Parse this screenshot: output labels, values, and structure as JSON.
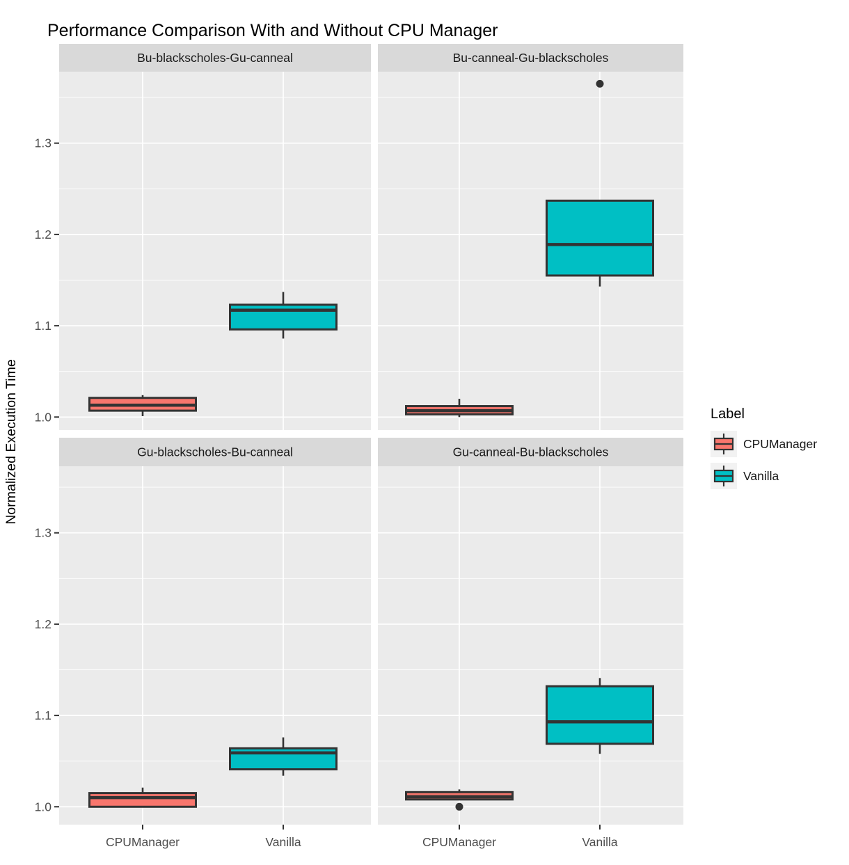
{
  "chart_data": {
    "type": "boxplot",
    "title": "Performance Comparison With and Without CPU Manager",
    "ylabel": "Normalized Execution Time",
    "xlabel": "",
    "x_categories": [
      "CPUManager",
      "Vanilla"
    ],
    "y_major_ticks": [
      1.0,
      1.1,
      1.2,
      1.3
    ],
    "y_minor_ticks": [
      1.05,
      1.15,
      1.25,
      1.35
    ],
    "ylim": [
      0.982,
      1.383
    ],
    "grid": "major-and-minor-horizontal, major-vertical-at-categories",
    "legend": {
      "title": "Label",
      "position": "right",
      "entries": [
        {
          "label": "CPUManager",
          "color": "#F8766D"
        },
        {
          "label": "Vanilla",
          "color": "#00BFC4"
        }
      ]
    },
    "colors": {
      "CPUManager": "#F8766D",
      "Vanilla": "#00BFC4",
      "panel_bg": "#EBEBEB",
      "strip_bg": "#D9D9D9",
      "grid_line": "#FFFFFF",
      "box_border": "#333333",
      "outlier": "#333333",
      "axis_text": "#4D4D4D",
      "strip_text": "#1A1A1A",
      "title_text": "#000000",
      "legend_key_bg": "#F2F2F2"
    },
    "facets": [
      {
        "label": "Bu-blackscholes-Gu-canneal",
        "boxes": [
          {
            "category": "CPUManager",
            "whisker_low": 1.001,
            "q1": 1.007,
            "median": 1.013,
            "q3": 1.021,
            "whisker_high": 1.024,
            "outliers": []
          },
          {
            "category": "Vanilla",
            "whisker_low": 1.086,
            "q1": 1.096,
            "median": 1.117,
            "q3": 1.123,
            "whisker_high": 1.137,
            "outliers": []
          }
        ]
      },
      {
        "label": "Bu-canneal-Gu-blackscholes",
        "boxes": [
          {
            "category": "CPUManager",
            "whisker_low": 1.0,
            "q1": 1.003,
            "median": 1.007,
            "q3": 1.012,
            "whisker_high": 1.02,
            "outliers": []
          },
          {
            "category": "Vanilla",
            "whisker_low": 1.143,
            "q1": 1.155,
            "median": 1.189,
            "q3": 1.237,
            "whisker_high": 1.237,
            "outliers": [
              1.365
            ]
          }
        ]
      },
      {
        "label": "Gu-blackscholes-Bu-canneal",
        "boxes": [
          {
            "category": "CPUManager",
            "whisker_low": 1.0,
            "q1": 1.0,
            "median": 1.01,
            "q3": 1.015,
            "whisker_high": 1.021,
            "outliers": []
          },
          {
            "category": "Vanilla",
            "whisker_low": 1.034,
            "q1": 1.041,
            "median": 1.059,
            "q3": 1.064,
            "whisker_high": 1.076,
            "outliers": []
          }
        ]
      },
      {
        "label": "Gu-canneal-Bu-blackscholes",
        "boxes": [
          {
            "category": "CPUManager",
            "whisker_low": 1.008,
            "q1": 1.008,
            "median": 1.011,
            "q3": 1.016,
            "whisker_high": 1.019,
            "outliers": [
              1.0
            ]
          },
          {
            "category": "Vanilla",
            "whisker_low": 1.058,
            "q1": 1.069,
            "median": 1.093,
            "q3": 1.132,
            "whisker_high": 1.141,
            "outliers": []
          }
        ]
      }
    ]
  }
}
